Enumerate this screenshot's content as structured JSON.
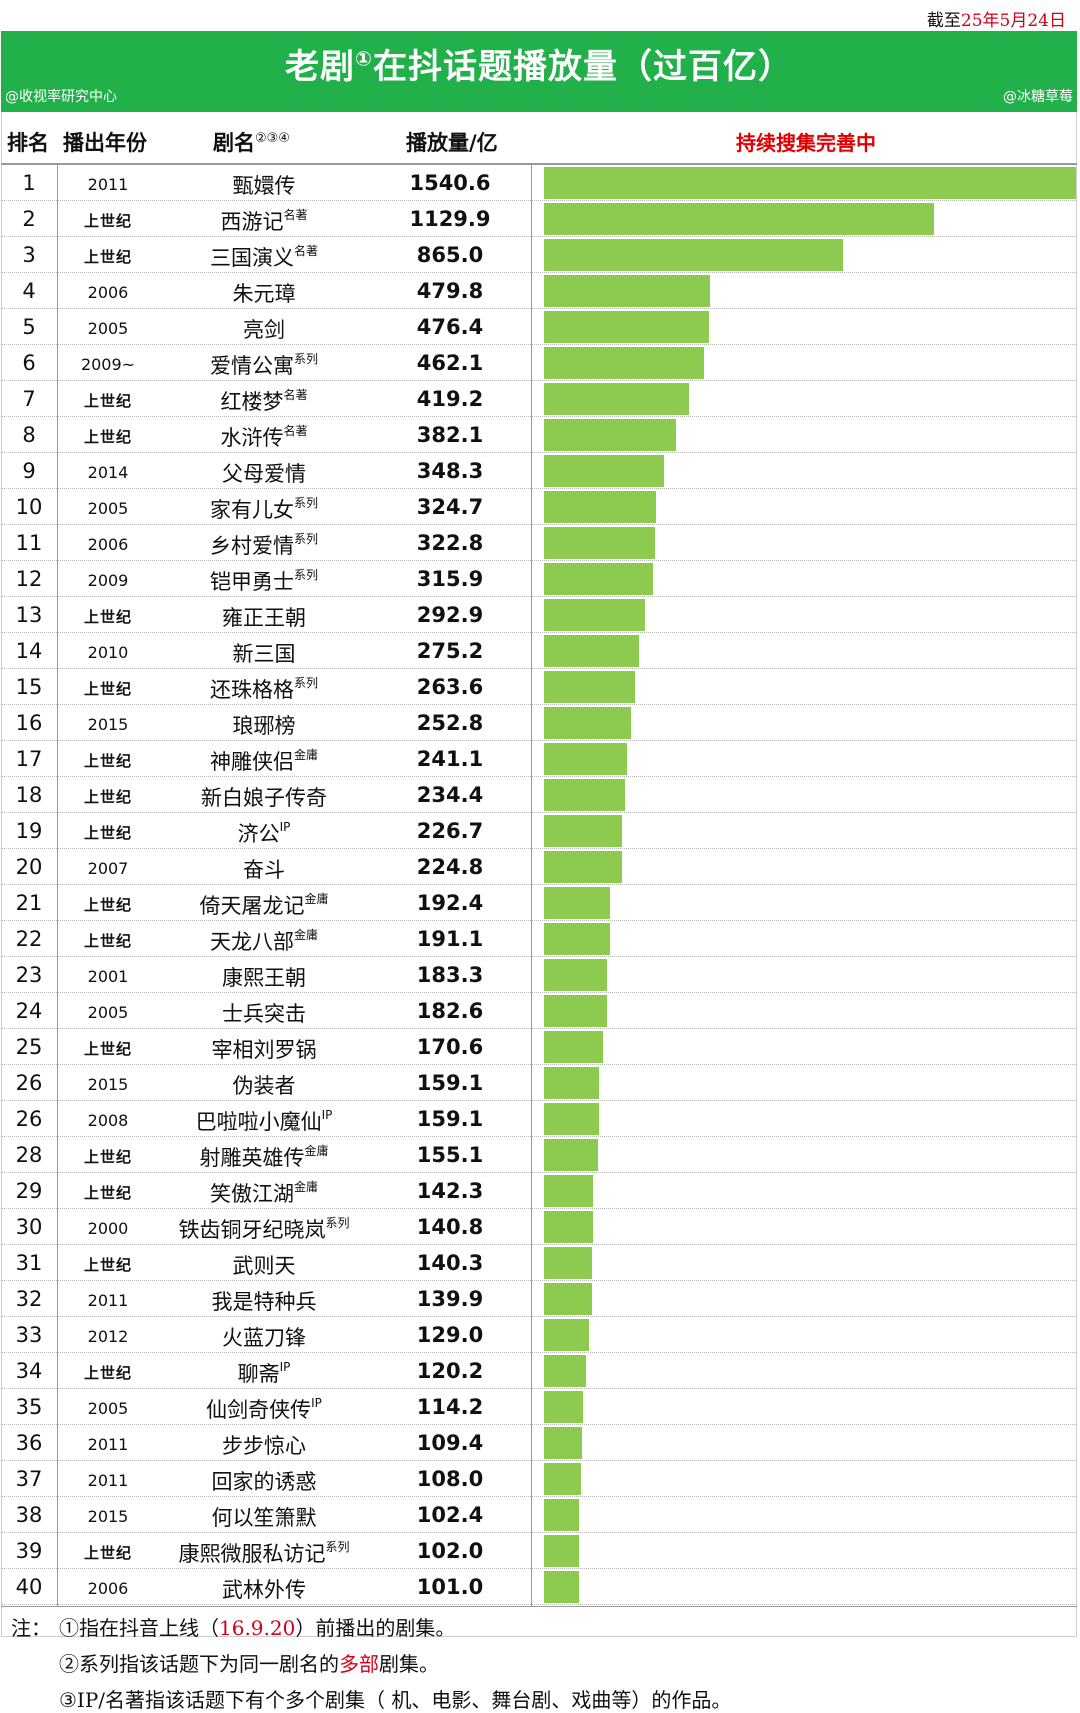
{
  "as_of": {
    "prefix": "截至",
    "date": "25年5月24日"
  },
  "title": {
    "main": "老剧",
    "sup": "①",
    "rest": "在抖话题播放量（过百亿）"
  },
  "credits": {
    "left": "@收视率研究中心",
    "right": "@冰糖草莓"
  },
  "header": {
    "rank": "排名",
    "year": "播出年份",
    "name": "剧名",
    "name_sup": "②③④",
    "plays": "播放量/亿",
    "note": "持续搜集完善中"
  },
  "colors": {
    "banner": "#22b04a",
    "bar": "#8ccb50",
    "highlight": "#e00000"
  },
  "chart_data": {
    "type": "bar",
    "orientation": "horizontal",
    "title": "老剧①在抖话题播放量（过百亿）",
    "value_label": "播放量/亿",
    "xlim": [
      0,
      1540.6
    ],
    "rows": [
      {
        "rank": "1",
        "year": "2011",
        "name": "甄嬛传",
        "tag": "",
        "value": 1540.6
      },
      {
        "rank": "2",
        "year": "上世纪",
        "name": "西游记",
        "tag": "名著",
        "value": 1129.9
      },
      {
        "rank": "3",
        "year": "上世纪",
        "name": "三国演义",
        "tag": "名著",
        "value": 865.0
      },
      {
        "rank": "4",
        "year": "2006",
        "name": "朱元璋",
        "tag": "",
        "value": 479.8
      },
      {
        "rank": "5",
        "year": "2005",
        "name": "亮剑",
        "tag": "",
        "value": 476.4
      },
      {
        "rank": "6",
        "year": "2009~",
        "name": "爱情公寓",
        "tag": "系列",
        "value": 462.1
      },
      {
        "rank": "7",
        "year": "上世纪",
        "name": "红楼梦",
        "tag": "名著",
        "value": 419.2
      },
      {
        "rank": "8",
        "year": "上世纪",
        "name": "水浒传",
        "tag": "名著",
        "value": 382.1
      },
      {
        "rank": "9",
        "year": "2014",
        "name": "父母爱情",
        "tag": "",
        "value": 348.3
      },
      {
        "rank": "10",
        "year": "2005",
        "name": "家有儿女",
        "tag": "系列",
        "value": 324.7
      },
      {
        "rank": "11",
        "year": "2006",
        "name": "乡村爱情",
        "tag": "系列",
        "value": 322.8
      },
      {
        "rank": "12",
        "year": "2009",
        "name": "铠甲勇士",
        "tag": "系列",
        "value": 315.9
      },
      {
        "rank": "13",
        "year": "上世纪",
        "name": "雍正王朝",
        "tag": "",
        "value": 292.9
      },
      {
        "rank": "14",
        "year": "2010",
        "name": "新三国",
        "tag": "",
        "value": 275.2
      },
      {
        "rank": "15",
        "year": "上世纪",
        "name": "还珠格格",
        "tag": "系列",
        "value": 263.6
      },
      {
        "rank": "16",
        "year": "2015",
        "name": "琅琊榜",
        "tag": "",
        "value": 252.8
      },
      {
        "rank": "17",
        "year": "上世纪",
        "name": "神雕侠侣",
        "tag": "金庸",
        "value": 241.1
      },
      {
        "rank": "18",
        "year": "上世纪",
        "name": "新白娘子传奇",
        "tag": "",
        "value": 234.4
      },
      {
        "rank": "19",
        "year": "上世纪",
        "name": "济公",
        "tag": "IP",
        "value": 226.7
      },
      {
        "rank": "20",
        "year": "2007",
        "name": "奋斗",
        "tag": "",
        "value": 224.8
      },
      {
        "rank": "21",
        "year": "上世纪",
        "name": "倚天屠龙记",
        "tag": "金庸",
        "value": 192.4
      },
      {
        "rank": "22",
        "year": "上世纪",
        "name": "天龙八部",
        "tag": "金庸",
        "value": 191.1
      },
      {
        "rank": "23",
        "year": "2001",
        "name": "康熙王朝",
        "tag": "",
        "value": 183.3
      },
      {
        "rank": "24",
        "year": "2005",
        "name": "士兵突击",
        "tag": "",
        "value": 182.6
      },
      {
        "rank": "25",
        "year": "上世纪",
        "name": "宰相刘罗锅",
        "tag": "",
        "value": 170.6
      },
      {
        "rank": "26",
        "year": "2015",
        "name": "伪装者",
        "tag": "",
        "value": 159.1
      },
      {
        "rank": "26",
        "year": "2008",
        "name": "巴啦啦小魔仙",
        "tag": "IP",
        "value": 159.1
      },
      {
        "rank": "28",
        "year": "上世纪",
        "name": "射雕英雄传",
        "tag": "金庸",
        "value": 155.1
      },
      {
        "rank": "29",
        "year": "上世纪",
        "name": "笑傲江湖",
        "tag": "金庸",
        "value": 142.3
      },
      {
        "rank": "30",
        "year": "2000",
        "name": "铁齿铜牙纪晓岚",
        "tag": "系列",
        "value": 140.8
      },
      {
        "rank": "31",
        "year": "上世纪",
        "name": "武则天",
        "tag": "",
        "value": 140.3
      },
      {
        "rank": "32",
        "year": "2011",
        "name": "我是特种兵",
        "tag": "",
        "value": 139.9
      },
      {
        "rank": "33",
        "year": "2012",
        "name": "火蓝刀锋",
        "tag": "",
        "value": 129.0
      },
      {
        "rank": "34",
        "year": "上世纪",
        "name": "聊斋",
        "tag": "IP",
        "value": 120.2
      },
      {
        "rank": "35",
        "year": "2005",
        "name": "仙剑奇侠传",
        "tag": "IP",
        "value": 114.2
      },
      {
        "rank": "36",
        "year": "2011",
        "name": "步步惊心",
        "tag": "",
        "value": 109.4
      },
      {
        "rank": "37",
        "year": "2011",
        "name": "回家的诱惑",
        "tag": "",
        "value": 108.0
      },
      {
        "rank": "38",
        "year": "2015",
        "name": "何以笙箫默",
        "tag": "",
        "value": 102.4
      },
      {
        "rank": "39",
        "year": "上世纪",
        "name": "康熙微服私访记",
        "tag": "系列",
        "value": 102.0
      },
      {
        "rank": "40",
        "year": "2006",
        "name": "武林外传",
        "tag": "",
        "value": 101.0
      }
    ]
  },
  "notes": {
    "label": "注：",
    "n1": {
      "a": "①指在抖音上线（",
      "hl": "16.9.20",
      "b": "）前播出的剧集。"
    },
    "n2": {
      "a": "②系列指该话题下为同一剧名的",
      "hl": "多部",
      "b": "剧集。"
    },
    "n3": {
      "a": "③IP/名著指该话题下有个多个剧集",
      "b": "（        机、电影、舞台剧、戏曲等）的作品。"
    }
  }
}
